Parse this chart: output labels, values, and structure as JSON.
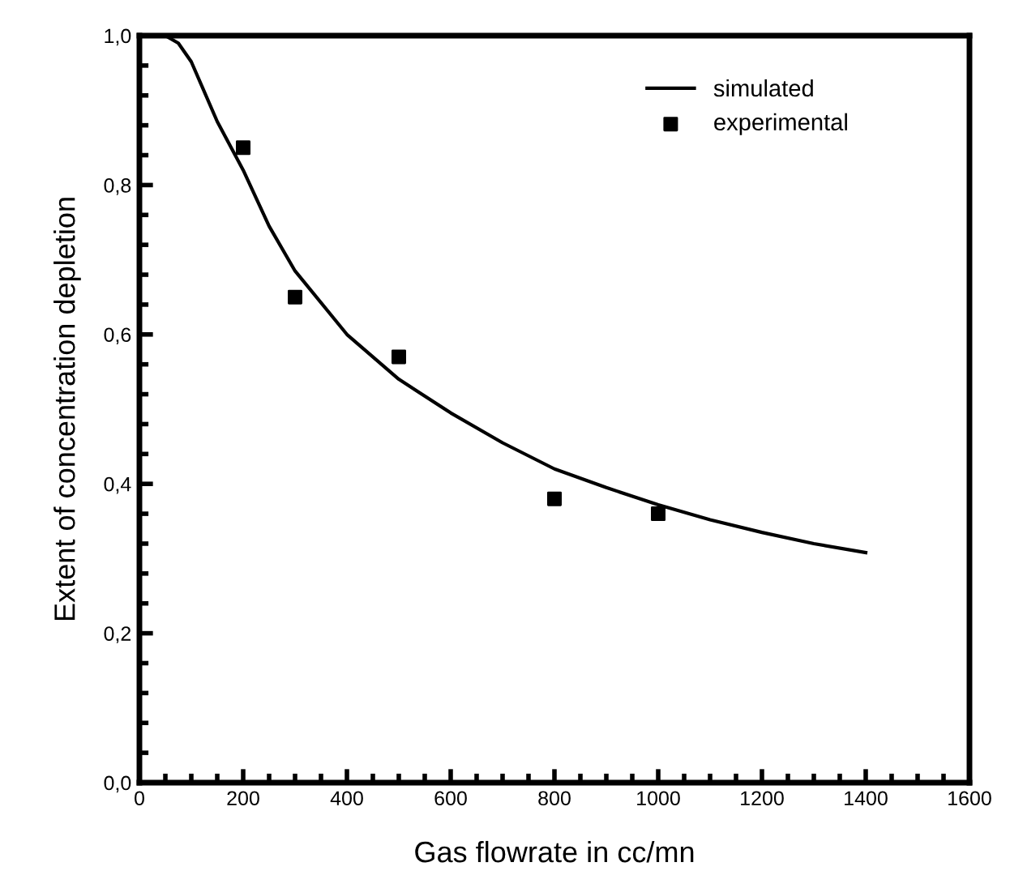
{
  "chart_data": {
    "type": "line",
    "xlabel": "Gas flowrate in cc/mn",
    "ylabel": "Extent of concentration depletion",
    "xlim": [
      0,
      1600
    ],
    "ylim": [
      0,
      1.0
    ],
    "xticks": [
      0,
      200,
      400,
      600,
      800,
      1000,
      1200,
      1400,
      1600
    ],
    "yticks": [
      {
        "value": 0,
        "label": "0,0"
      },
      {
        "value": 0.2,
        "label": "0,2"
      },
      {
        "value": 0.4,
        "label": "0,4"
      },
      {
        "value": 0.6,
        "label": "0,6"
      },
      {
        "value": 0.8,
        "label": "0,8"
      },
      {
        "value": 1.0,
        "label": "1,0"
      }
    ],
    "grid": false,
    "legend": "top right",
    "series": [
      {
        "name": "simulated",
        "color": "#000000",
        "marker": "none",
        "line_style": "solid",
        "x": [
          50,
          75,
          100,
          125,
          150,
          200,
          250,
          300,
          400,
          500,
          600,
          700,
          800,
          900,
          1000,
          1100,
          1200,
          1300,
          1400
        ],
        "values": [
          1.0,
          0.99,
          0.965,
          0.925,
          0.885,
          0.82,
          0.745,
          0.685,
          0.6,
          0.54,
          0.495,
          0.455,
          0.42,
          0.395,
          0.372,
          0.352,
          0.335,
          0.32,
          0.308
        ]
      },
      {
        "name": "experimental",
        "type": "scatter",
        "color": "#000000",
        "marker": "square",
        "x": [
          200,
          300,
          500,
          800,
          1000
        ],
        "values": [
          0.85,
          0.65,
          0.57,
          0.38,
          0.36
        ]
      }
    ]
  }
}
